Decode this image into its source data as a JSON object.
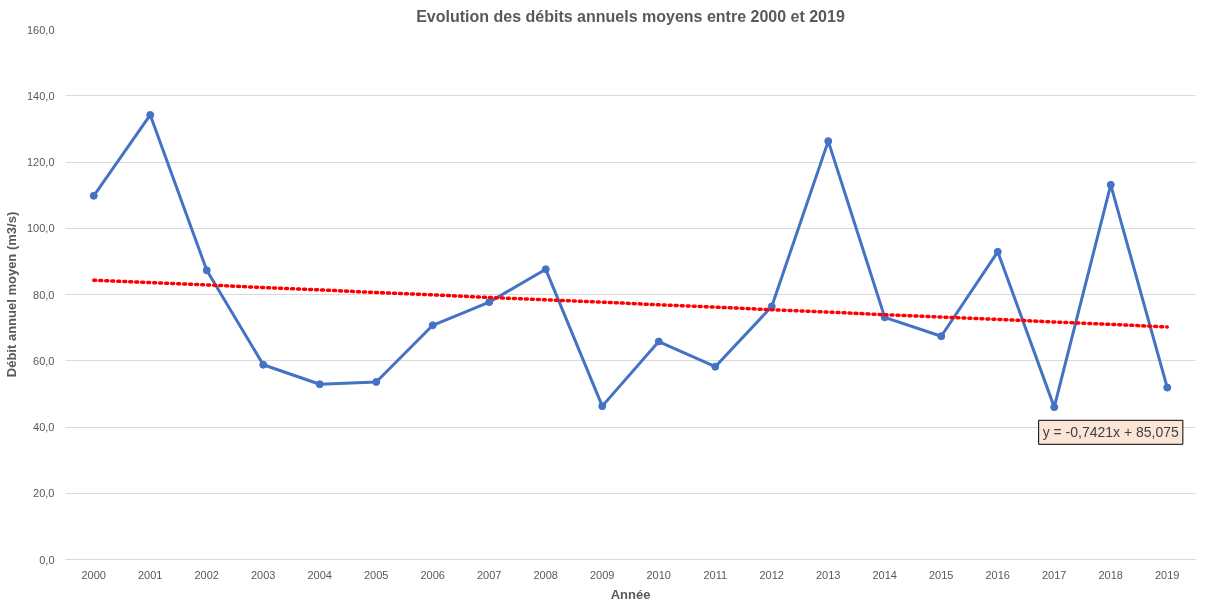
{
  "chart_data": {
    "type": "line",
    "title": "Evolution des débits annuels moyens entre 2000 et 2019",
    "xlabel": "Année",
    "ylabel": "Débit annuel moyen (m3/s)",
    "categories": [
      "2000",
      "2001",
      "2002",
      "2003",
      "2004",
      "2005",
      "2006",
      "2007",
      "2008",
      "2009",
      "2010",
      "2011",
      "2012",
      "2013",
      "2014",
      "2015",
      "2016",
      "2017",
      "2018",
      "2019"
    ],
    "series": [
      {
        "color": "#4472c4",
        "values": [
          109.8,
          134.2,
          87.3,
          58.8,
          52.9,
          53.6,
          70.7,
          77.7,
          87.6,
          46.3,
          65.8,
          58.2,
          76.4,
          126.3,
          73.1,
          67.4,
          92.9,
          46.0,
          113.1,
          51.9
        ],
        "marker": "circle",
        "line_style": "solid"
      },
      {
        "type": "line",
        "color": "#ff0000",
        "values": [
          84.3,
          83.6,
          82.9,
          82.1,
          81.4,
          80.6,
          79.9,
          79.1,
          78.4,
          77.7,
          76.9,
          76.2,
          75.4,
          74.7,
          73.9,
          73.2,
          72.5,
          71.7,
          71.0,
          70.2
        ],
        "marker": "none",
        "line_style": "dotted"
      }
    ],
    "ylim": [
      0,
      160
    ],
    "yticks": [
      {
        "value": 0,
        "label": "0,0"
      },
      {
        "value": 20,
        "label": "20,0"
      },
      {
        "value": 40,
        "label": "40,0"
      },
      {
        "value": 60,
        "label": "60,0"
      },
      {
        "value": 80,
        "label": "80,0"
      },
      {
        "value": 100,
        "label": "100,0"
      },
      {
        "value": 120,
        "label": "120,0"
      },
      {
        "value": 140,
        "label": "140,0"
      },
      {
        "value": 160,
        "label": "160,0"
      }
    ],
    "grid": "y",
    "annotations": [
      "y = -0,7421x + 85,075"
    ]
  }
}
